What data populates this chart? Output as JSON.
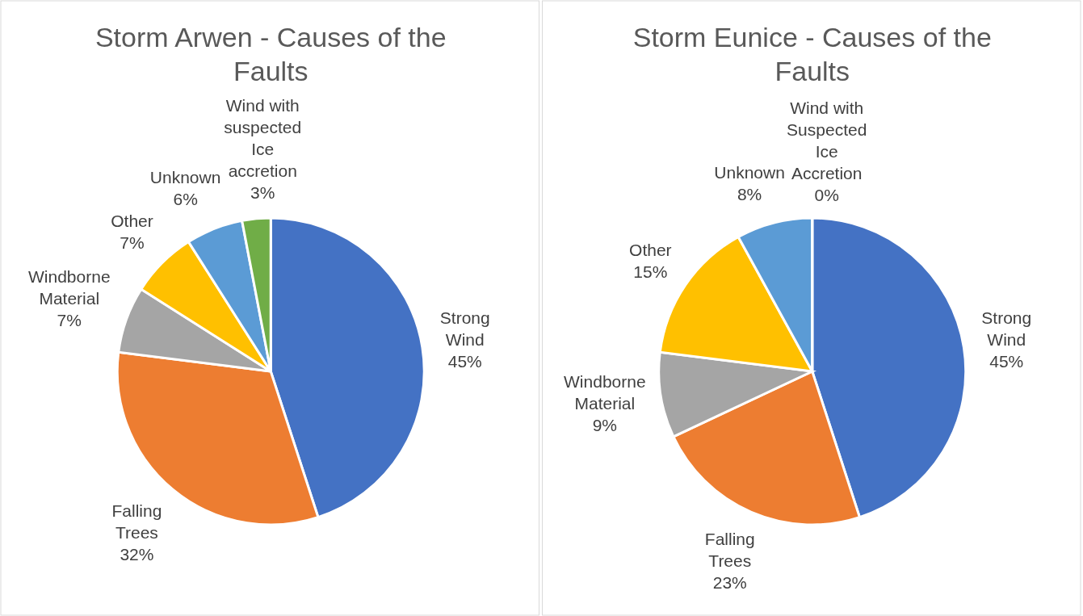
{
  "chart_data": [
    {
      "type": "pie",
      "title": "Storm Arwen - Causes of the Faults",
      "categories": [
        "Strong Wind",
        "Falling Trees",
        "Windborne Material",
        "Other",
        "Unknown",
        "Wind with suspected Ice accretion"
      ],
      "values": [
        45,
        32,
        7,
        7,
        6,
        3
      ],
      "value_labels": [
        "45%",
        "32%",
        "7%",
        "7%",
        "6%",
        "3%"
      ],
      "colors": [
        "#4472c4",
        "#ed7d31",
        "#a5a5a5",
        "#ffc000",
        "#5b9bd5",
        "#70ad47"
      ]
    },
    {
      "type": "pie",
      "title": "Storm Eunice - Causes of the Faults",
      "categories": [
        "Strong Wind",
        "Falling Trees",
        "Windborne Material",
        "Other",
        "Unknown",
        "Wind with Suspected Ice Accretion"
      ],
      "values": [
        45,
        23,
        9,
        15,
        8,
        0
      ],
      "value_labels": [
        "45%",
        "23%",
        "9%",
        "15%",
        "8%",
        "0%"
      ],
      "colors": [
        "#4472c4",
        "#ed7d31",
        "#a5a5a5",
        "#ffc000",
        "#5b9bd5",
        "#70ad47"
      ]
    }
  ]
}
